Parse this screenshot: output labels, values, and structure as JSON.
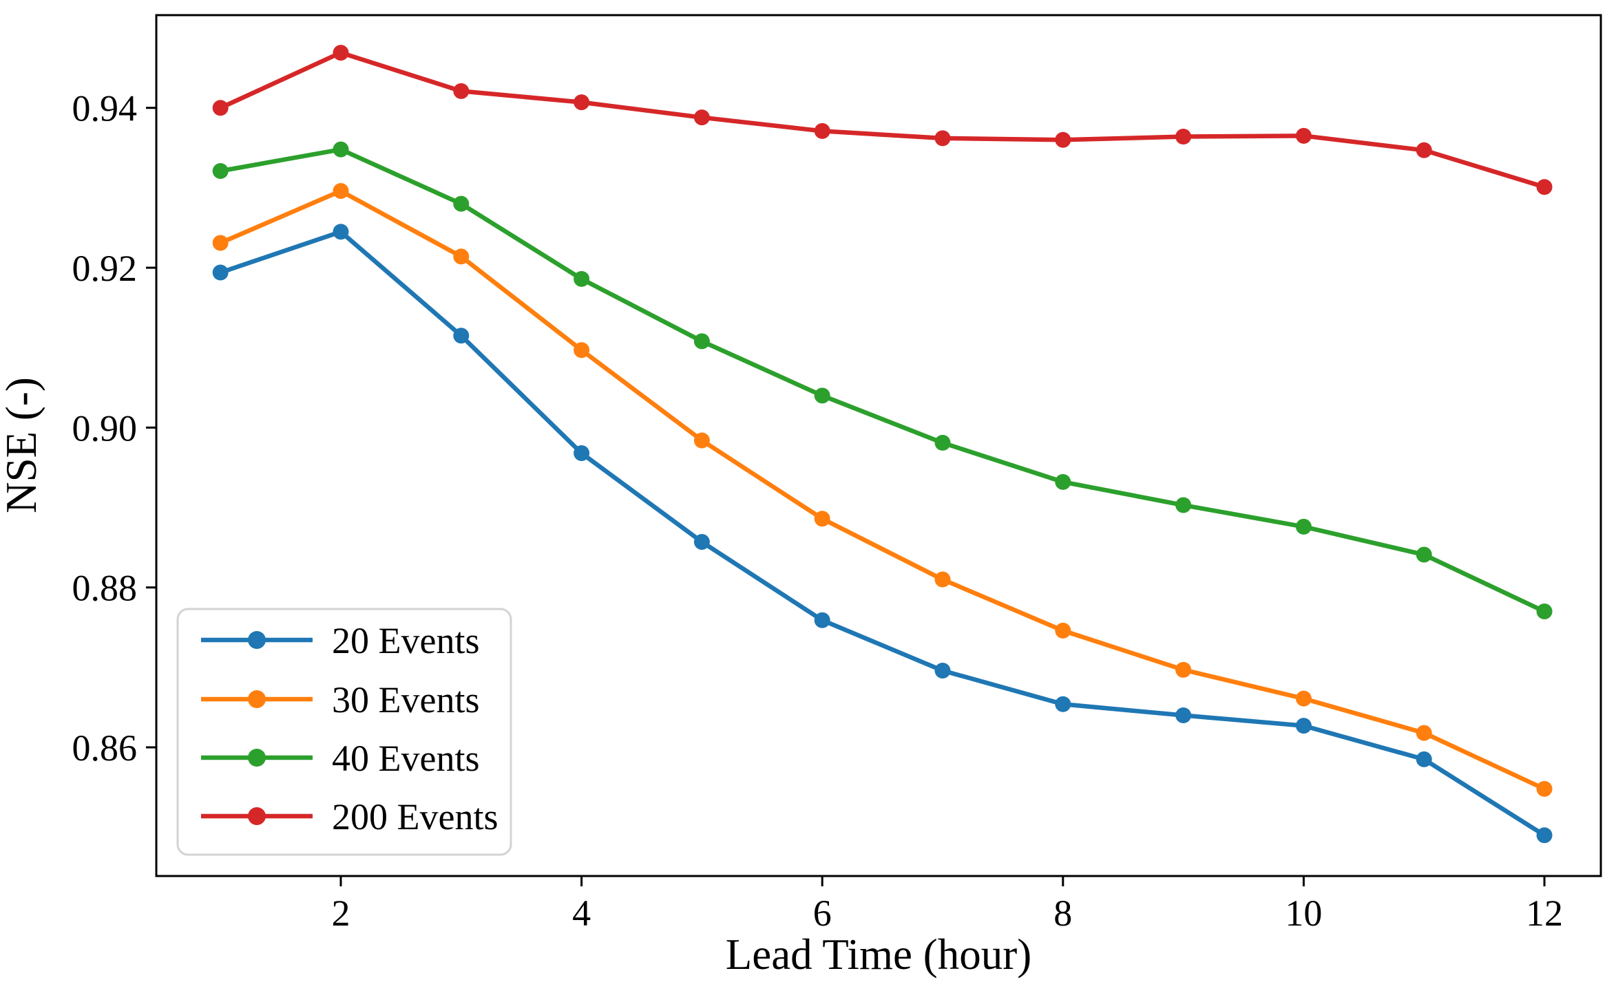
{
  "chart_data": {
    "type": "line",
    "title": "",
    "xlabel": "Lead Time (hour)",
    "ylabel": "NSE (-)",
    "x": [
      1,
      2,
      3,
      4,
      5,
      6,
      7,
      8,
      9,
      10,
      11,
      12
    ],
    "series": [
      {
        "name": "20 Events",
        "color": "#1f77b4",
        "values": [
          0.9194,
          0.9245,
          0.9115,
          0.8968,
          0.8857,
          0.8759,
          0.8696,
          0.8654,
          0.864,
          0.8627,
          0.8585,
          0.849
        ]
      },
      {
        "name": "30 Events",
        "color": "#ff7f0e",
        "values": [
          0.9231,
          0.9296,
          0.9214,
          0.9097,
          0.8984,
          0.8886,
          0.881,
          0.8746,
          0.8697,
          0.8661,
          0.8618,
          0.8548
        ]
      },
      {
        "name": "40 Events",
        "color": "#2ca02c",
        "values": [
          0.9321,
          0.9348,
          0.928,
          0.9186,
          0.9108,
          0.904,
          0.8981,
          0.8932,
          0.8903,
          0.8876,
          0.8841,
          0.877
        ]
      },
      {
        "name": "200 Events",
        "color": "#d62728",
        "values": [
          0.94,
          0.9469,
          0.9421,
          0.9407,
          0.9388,
          0.9371,
          0.9362,
          0.936,
          0.9364,
          0.9365,
          0.9347,
          0.9301
        ]
      }
    ],
    "x_ticks": [
      "2",
      "4",
      "6",
      "8",
      "10",
      "12"
    ],
    "x_tick_values": [
      2,
      4,
      6,
      8,
      10,
      12
    ],
    "y_ticks": [
      "0.86",
      "0.88",
      "0.90",
      "0.92",
      "0.94"
    ],
    "y_tick_values": [
      0.86,
      0.88,
      0.9,
      0.92,
      0.94
    ],
    "xlim": [
      0.467,
      12.469
    ],
    "ylim": [
      0.8439,
      0.9516
    ],
    "grid": false,
    "legend_position": "lower left",
    "legend_entries": [
      "20 Events",
      "30 Events",
      "40 Events",
      "200 Events"
    ],
    "axis_color": "#000000",
    "legend_border_color": "#d3d3d3",
    "background_color": "#ffffff"
  }
}
